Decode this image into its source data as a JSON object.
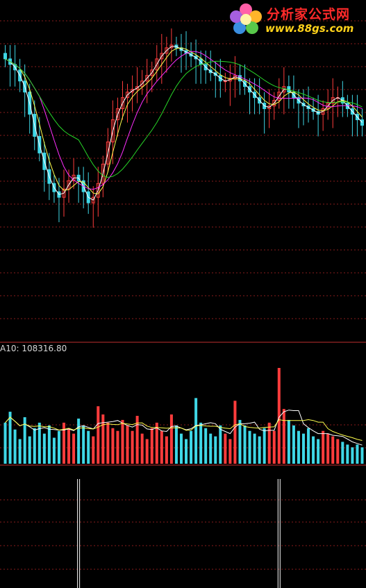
{
  "watermark": {
    "title": "分析家公式网",
    "url": "www.88gs.com",
    "icon": "flower-logo-icon"
  },
  "colors": {
    "background": "#000000",
    "up": "#ff3c3c",
    "down": "#3fd7e6",
    "grid": "#8a1b1b",
    "separator": "#c03030",
    "ma_short": "#ffffff",
    "ma_mid": "#ffff4d",
    "ma_long": "#ff2fff",
    "ma_longest": "#28d628",
    "signal": "#ffffff"
  },
  "volume_panel": {
    "label": "A10: 108316.80"
  },
  "chart_data": [
    {
      "type": "candlestick",
      "panel": "price",
      "series": [
        {
          "name": "close",
          "values": [
            90,
            88,
            86,
            82,
            78,
            70,
            62,
            56,
            50,
            45,
            42,
            40,
            43,
            46,
            48,
            46,
            42,
            38,
            40,
            45,
            52,
            60,
            68,
            72,
            76,
            78,
            79,
            80,
            82,
            84,
            86,
            90,
            92,
            94,
            95,
            94,
            93,
            92,
            91,
            90,
            88,
            86,
            85,
            84,
            82,
            82,
            83,
            84,
            82,
            80,
            78,
            76,
            74,
            72,
            73,
            75,
            78,
            80,
            78,
            76,
            74,
            73,
            72,
            71,
            70,
            72,
            74,
            76,
            76,
            74,
            72,
            70,
            68,
            66
          ]
        },
        {
          "name": "ma_short"
        },
        {
          "name": "ma_mid"
        },
        {
          "name": "ma_long"
        },
        {
          "name": "ma_longest"
        }
      ],
      "grid": true
    },
    {
      "type": "bar",
      "panel": "volume",
      "values": [
        30,
        38,
        25,
        18,
        34,
        20,
        26,
        30,
        22,
        28,
        19,
        24,
        30,
        26,
        22,
        33,
        28,
        24,
        20,
        42,
        36,
        30,
        26,
        24,
        32,
        28,
        24,
        35,
        22,
        18,
        26,
        30,
        24,
        20,
        36,
        28,
        22,
        18,
        24,
        48,
        30,
        26,
        22,
        20,
        28,
        22,
        18,
        46,
        32,
        28,
        24,
        22,
        20,
        26,
        30,
        24,
        70,
        40,
        32,
        28,
        24,
        22,
        26,
        20,
        18,
        24,
        22,
        20,
        18,
        16,
        14,
        12,
        14,
        12
      ]
    },
    {
      "type": "bar",
      "panel": "signal",
      "values": [
        0,
        0,
        0,
        0,
        0,
        0,
        0,
        0,
        0,
        0,
        0,
        0,
        0,
        0,
        0,
        1,
        0,
        0,
        0,
        0,
        0,
        0,
        0,
        0,
        0,
        0,
        0,
        0,
        0,
        0,
        0,
        0,
        0,
        0,
        0,
        0,
        0,
        0,
        0,
        0,
        0,
        0,
        0,
        0,
        0,
        0,
        0,
        0,
        0,
        0,
        0,
        0,
        0,
        0,
        0,
        0,
        1,
        0,
        0,
        0,
        0,
        0,
        0,
        0,
        0,
        0,
        0,
        0,
        0,
        0,
        0,
        0,
        0,
        0
      ]
    }
  ]
}
